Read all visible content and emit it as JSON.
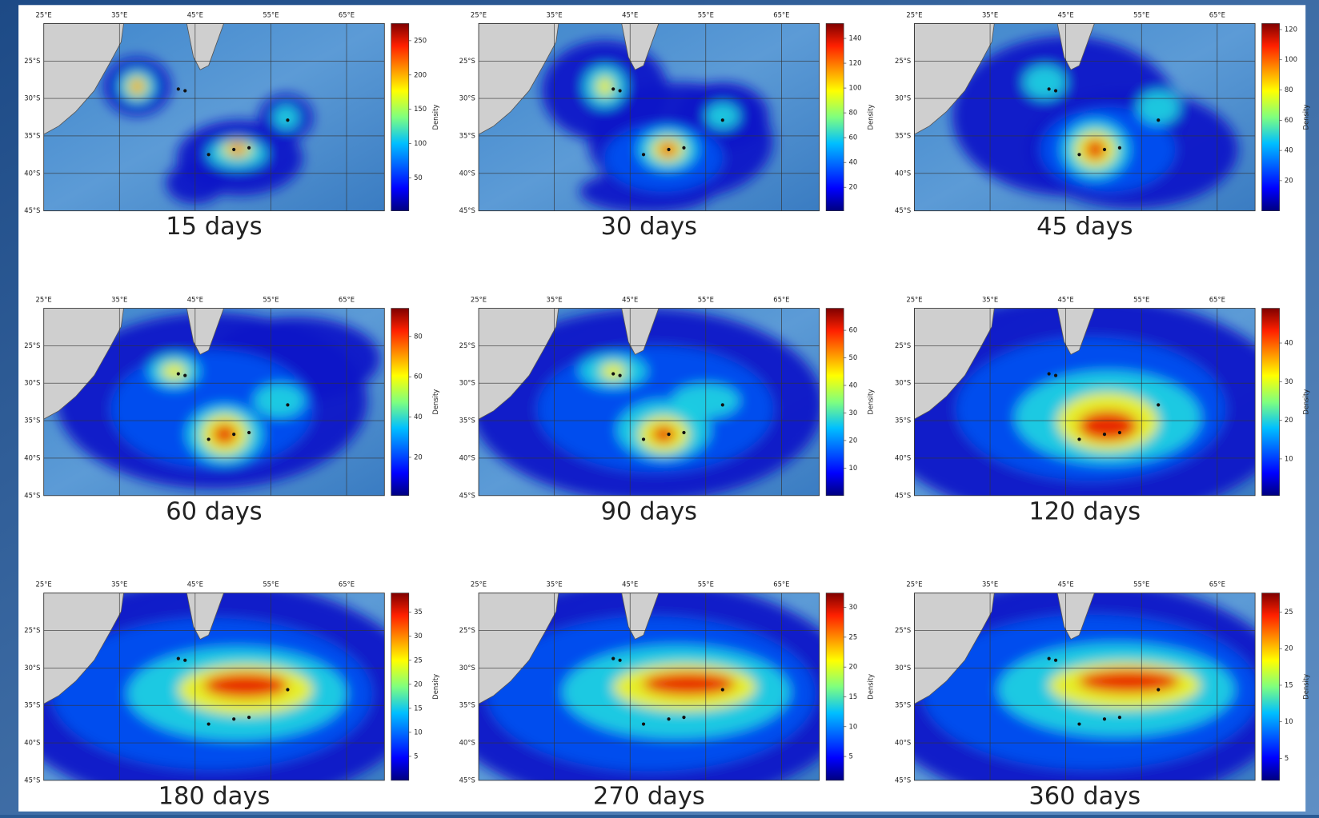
{
  "maps": {
    "xlim": [
      25,
      70
    ],
    "ylim": [
      -45,
      -20
    ],
    "xticks": [
      {
        "value": 25,
        "label": "25°E"
      },
      {
        "value": 35,
        "label": "35°E"
      },
      {
        "value": 45,
        "label": "45°E"
      },
      {
        "value": 55,
        "label": "55°E"
      },
      {
        "value": 65,
        "label": "65°E"
      }
    ],
    "yticks": [
      {
        "value": -25,
        "label": "25°S"
      },
      {
        "value": -30,
        "label": "30°S"
      },
      {
        "value": -35,
        "label": "35°S"
      },
      {
        "value": -40,
        "label": "40°S"
      },
      {
        "value": -45,
        "label": "45°S"
      }
    ],
    "colorbar_label": "Density",
    "panels": [
      {
        "caption": "15 days",
        "clim": [
          2,
          275
        ],
        "cticks": [
          50,
          100,
          150,
          200,
          250
        ]
      },
      {
        "caption": "30 days",
        "clim": [
          1,
          152
        ],
        "cticks": [
          20,
          40,
          60,
          80,
          100,
          120,
          140
        ]
      },
      {
        "caption": "45 days",
        "clim": [
          0,
          124
        ],
        "cticks": [
          20,
          40,
          60,
          80,
          100,
          120
        ]
      },
      {
        "caption": "60 days",
        "clim": [
          1,
          94
        ],
        "cticks": [
          20,
          40,
          60,
          80
        ]
      },
      {
        "caption": "90 days",
        "clim": [
          0,
          68
        ],
        "cticks": [
          10,
          20,
          30,
          40,
          50,
          60
        ]
      },
      {
        "caption": "120 days",
        "clim": [
          0.5,
          49
        ],
        "cticks": [
          10,
          20,
          30,
          40
        ]
      },
      {
        "caption": "180 days",
        "clim": [
          0,
          39
        ],
        "cticks": [
          5,
          10,
          15,
          20,
          25,
          30,
          35
        ]
      },
      {
        "caption": "270 days",
        "clim": [
          1,
          32.4
        ],
        "cticks": [
          5,
          10,
          15,
          20,
          25,
          30
        ]
      },
      {
        "caption": "360  days",
        "clim": [
          2,
          27.6
        ],
        "cticks": [
          5,
          10,
          15,
          20,
          25
        ]
      }
    ]
  }
}
